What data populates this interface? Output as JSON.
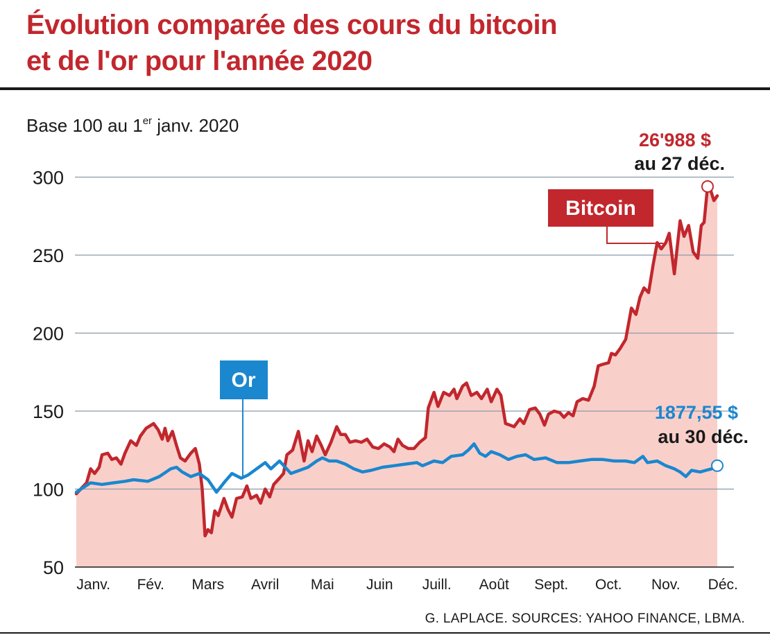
{
  "header": {
    "title_line1": "Évolution comparée des cours du bitcoin",
    "title_line2": "et de l'or pour l'année 2020",
    "subtitle_before": "Base 100 au 1",
    "subtitle_sup": "er",
    "subtitle_after": " janv. 2020"
  },
  "source": "G. LAPLACE. SOURCES: YAHOO FINANCE, LBMA.",
  "colors": {
    "bitcoin": "#c1272d",
    "gold": "#1a87cf",
    "area": "#f9cfca",
    "grid": "#8a9aa6",
    "axis": "#1a1a1a"
  },
  "chart_data": {
    "type": "line",
    "title": "Évolution comparée des cours du bitcoin et de l'or pour l'année 2020",
    "ylabel": "Base 100 au 1er janv. 2020",
    "xlabel": "",
    "ylim": [
      50,
      300
    ],
    "yticks": [
      300,
      250,
      200,
      150,
      100,
      50
    ],
    "xlim": [
      0,
      12
    ],
    "month_labels": [
      "Janv.",
      "Fév.",
      "Mars",
      "Avril",
      "Mai",
      "Juin",
      "Juill.",
      "Août",
      "Sept.",
      "Oct.",
      "Nov.",
      "Déc."
    ],
    "grid": true,
    "series": [
      {
        "name": "Bitcoin",
        "area_fill": true,
        "points": [
          [
            0.0,
            97
          ],
          [
            0.1,
            101
          ],
          [
            0.18,
            104
          ],
          [
            0.25,
            113
          ],
          [
            0.32,
            110
          ],
          [
            0.4,
            114
          ],
          [
            0.45,
            122
          ],
          [
            0.55,
            123
          ],
          [
            0.62,
            119
          ],
          [
            0.7,
            120
          ],
          [
            0.78,
            116
          ],
          [
            0.85,
            123
          ],
          [
            0.95,
            131
          ],
          [
            1.05,
            128
          ],
          [
            1.12,
            134
          ],
          [
            1.22,
            139
          ],
          [
            1.35,
            142
          ],
          [
            1.43,
            138
          ],
          [
            1.5,
            132
          ],
          [
            1.55,
            139
          ],
          [
            1.6,
            131
          ],
          [
            1.68,
            137
          ],
          [
            1.75,
            128
          ],
          [
            1.82,
            120
          ],
          [
            1.9,
            118
          ],
          [
            2.0,
            123
          ],
          [
            2.08,
            126
          ],
          [
            2.15,
            116
          ],
          [
            2.2,
            100
          ],
          [
            2.25,
            70
          ],
          [
            2.3,
            74
          ],
          [
            2.36,
            72
          ],
          [
            2.42,
            86
          ],
          [
            2.48,
            83
          ],
          [
            2.58,
            94
          ],
          [
            2.65,
            87
          ],
          [
            2.72,
            82
          ],
          [
            2.8,
            94
          ],
          [
            2.9,
            95
          ],
          [
            2.98,
            102
          ],
          [
            3.05,
            94
          ],
          [
            3.15,
            96
          ],
          [
            3.22,
            91
          ],
          [
            3.3,
            100
          ],
          [
            3.38,
            95
          ],
          [
            3.45,
            103
          ],
          [
            3.55,
            107
          ],
          [
            3.62,
            110
          ],
          [
            3.68,
            122
          ],
          [
            3.78,
            125
          ],
          [
            3.88,
            137
          ],
          [
            3.98,
            118
          ],
          [
            4.05,
            131
          ],
          [
            4.12,
            124
          ],
          [
            4.2,
            134
          ],
          [
            4.28,
            128
          ],
          [
            4.35,
            122
          ],
          [
            4.45,
            130
          ],
          [
            4.55,
            140
          ],
          [
            4.62,
            135
          ],
          [
            4.7,
            135
          ],
          [
            4.78,
            130
          ],
          [
            4.88,
            131
          ],
          [
            4.98,
            130
          ],
          [
            5.08,
            132
          ],
          [
            5.18,
            127
          ],
          [
            5.28,
            126
          ],
          [
            5.38,
            129
          ],
          [
            5.48,
            127
          ],
          [
            5.55,
            124
          ],
          [
            5.62,
            132
          ],
          [
            5.7,
            128
          ],
          [
            5.8,
            126
          ],
          [
            5.9,
            126
          ],
          [
            6.0,
            130
          ],
          [
            6.1,
            133
          ],
          [
            6.15,
            152
          ],
          [
            6.25,
            162
          ],
          [
            6.32,
            153
          ],
          [
            6.42,
            162
          ],
          [
            6.52,
            160
          ],
          [
            6.6,
            164
          ],
          [
            6.65,
            158
          ],
          [
            6.75,
            166
          ],
          [
            6.82,
            168
          ],
          [
            6.9,
            160
          ],
          [
            7.0,
            162
          ],
          [
            7.08,
            158
          ],
          [
            7.18,
            164
          ],
          [
            7.25,
            156
          ],
          [
            7.35,
            164
          ],
          [
            7.42,
            160
          ],
          [
            7.5,
            142
          ],
          [
            7.58,
            141
          ],
          [
            7.65,
            140
          ],
          [
            7.75,
            145
          ],
          [
            7.82,
            142
          ],
          [
            7.92,
            151
          ],
          [
            8.02,
            152
          ],
          [
            8.1,
            148
          ],
          [
            8.18,
            141
          ],
          [
            8.25,
            148
          ],
          [
            8.35,
            150
          ],
          [
            8.45,
            149
          ],
          [
            8.52,
            146
          ],
          [
            8.6,
            149
          ],
          [
            8.68,
            147
          ],
          [
            8.75,
            156
          ],
          [
            8.85,
            158
          ],
          [
            8.95,
            157
          ],
          [
            9.05,
            166
          ],
          [
            9.12,
            179
          ],
          [
            9.2,
            180
          ],
          [
            9.3,
            181
          ],
          [
            9.35,
            187
          ],
          [
            9.42,
            186
          ],
          [
            9.5,
            190
          ],
          [
            9.6,
            196
          ],
          [
            9.7,
            216
          ],
          [
            9.78,
            212
          ],
          [
            9.85,
            223
          ],
          [
            9.92,
            229
          ],
          [
            10.0,
            226
          ],
          [
            10.08,
            244
          ],
          [
            10.15,
            258
          ],
          [
            10.22,
            254
          ],
          [
            10.3,
            258
          ],
          [
            10.36,
            264
          ],
          [
            10.45,
            238
          ],
          [
            10.55,
            272
          ],
          [
            10.62,
            262
          ],
          [
            10.7,
            269
          ],
          [
            10.78,
            252
          ],
          [
            10.86,
            248
          ],
          [
            10.92,
            269
          ],
          [
            10.97,
            271
          ],
          [
            11.03,
            294
          ],
          [
            11.09,
            291
          ],
          [
            11.14,
            285
          ],
          [
            11.2,
            288
          ]
        ],
        "annotation": {
          "value": "26'988 $",
          "date": "au 27 déc.",
          "x": 11.03,
          "y": 294
        }
      },
      {
        "name": "Or",
        "area_fill": false,
        "points": [
          [
            0.0,
            98
          ],
          [
            0.12,
            101
          ],
          [
            0.25,
            104
          ],
          [
            0.45,
            103
          ],
          [
            0.65,
            104
          ],
          [
            0.85,
            105
          ],
          [
            1.0,
            106
          ],
          [
            1.25,
            105
          ],
          [
            1.45,
            108
          ],
          [
            1.65,
            113
          ],
          [
            1.75,
            114
          ],
          [
            1.85,
            111
          ],
          [
            2.0,
            108
          ],
          [
            2.15,
            110
          ],
          [
            2.3,
            106
          ],
          [
            2.45,
            98
          ],
          [
            2.6,
            105
          ],
          [
            2.72,
            110
          ],
          [
            2.88,
            107
          ],
          [
            3.0,
            109
          ],
          [
            3.15,
            113
          ],
          [
            3.3,
            117
          ],
          [
            3.4,
            113
          ],
          [
            3.55,
            118
          ],
          [
            3.65,
            114
          ],
          [
            3.75,
            110
          ],
          [
            3.9,
            112
          ],
          [
            4.05,
            114
          ],
          [
            4.2,
            118
          ],
          [
            4.3,
            120
          ],
          [
            4.42,
            118
          ],
          [
            4.55,
            118
          ],
          [
            4.7,
            116
          ],
          [
            4.85,
            113
          ],
          [
            5.0,
            111
          ],
          [
            5.15,
            112
          ],
          [
            5.35,
            114
          ],
          [
            5.55,
            115
          ],
          [
            5.75,
            116
          ],
          [
            5.95,
            117
          ],
          [
            6.05,
            115
          ],
          [
            6.25,
            118
          ],
          [
            6.4,
            117
          ],
          [
            6.55,
            121
          ],
          [
            6.75,
            122
          ],
          [
            6.85,
            125
          ],
          [
            6.95,
            129
          ],
          [
            7.05,
            123
          ],
          [
            7.15,
            121
          ],
          [
            7.25,
            124
          ],
          [
            7.4,
            122
          ],
          [
            7.55,
            119
          ],
          [
            7.7,
            121
          ],
          [
            7.85,
            122
          ],
          [
            8.0,
            119
          ],
          [
            8.2,
            120
          ],
          [
            8.4,
            117
          ],
          [
            8.6,
            117
          ],
          [
            8.8,
            118
          ],
          [
            9.0,
            119
          ],
          [
            9.2,
            119
          ],
          [
            9.4,
            118
          ],
          [
            9.6,
            118
          ],
          [
            9.75,
            117
          ],
          [
            9.9,
            121
          ],
          [
            9.98,
            117
          ],
          [
            10.15,
            118
          ],
          [
            10.3,
            115
          ],
          [
            10.45,
            113
          ],
          [
            10.55,
            111
          ],
          [
            10.65,
            108
          ],
          [
            10.75,
            112
          ],
          [
            10.9,
            111
          ],
          [
            11.0,
            112
          ],
          [
            11.1,
            113
          ],
          [
            11.2,
            115
          ]
        ],
        "annotation": {
          "value": "1877,55 $",
          "date": "au 30 déc.",
          "x": 11.2,
          "y": 115
        }
      }
    ],
    "labels": {
      "bitcoin_box": "Bitcoin",
      "gold_box": "Or"
    }
  }
}
